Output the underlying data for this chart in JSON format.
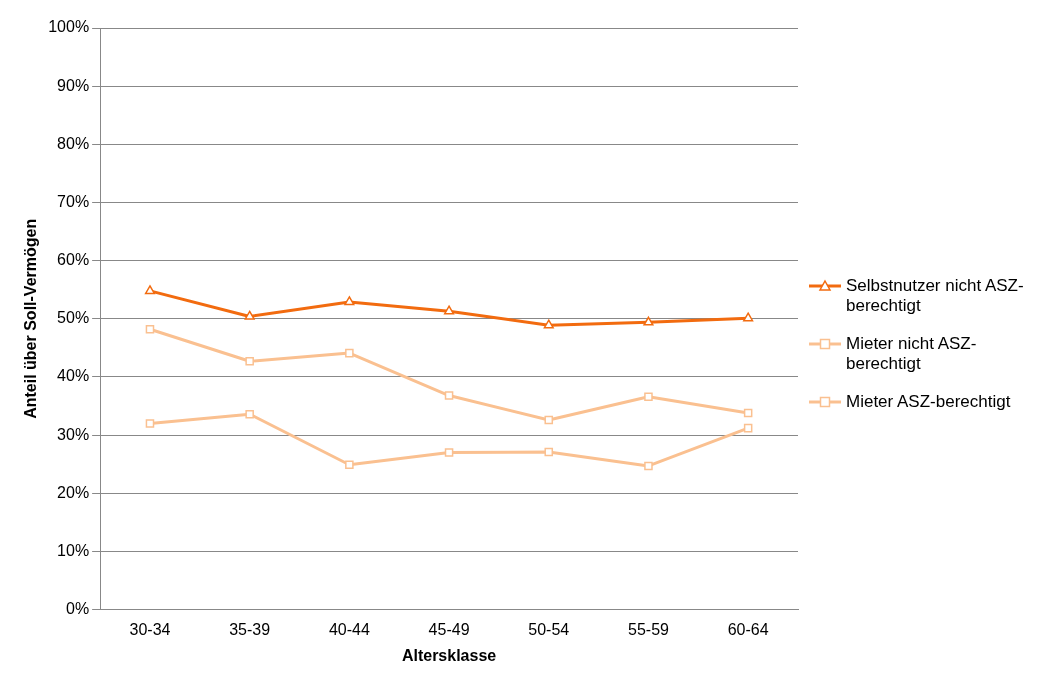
{
  "chart_data": {
    "type": "line",
    "xlabel": "Altersklasse",
    "ylabel": "Anteil über Soll-Vermögen",
    "categories": [
      "30-34",
      "35-39",
      "40-44",
      "45-49",
      "50-54",
      "55-59",
      "60-64"
    ],
    "ylim": [
      0,
      100
    ],
    "yticks": [
      {
        "value": 0,
        "label": "0%"
      },
      {
        "value": 10,
        "label": "10%"
      },
      {
        "value": 20,
        "label": "20%"
      },
      {
        "value": 30,
        "label": "30%"
      },
      {
        "value": 40,
        "label": "40%"
      },
      {
        "value": 50,
        "label": "50%"
      },
      {
        "value": 60,
        "label": "60%"
      },
      {
        "value": 70,
        "label": "70%"
      },
      {
        "value": 80,
        "label": "80%"
      },
      {
        "value": 90,
        "label": "90%"
      },
      {
        "value": 100,
        "label": "100%"
      }
    ],
    "grid": "y",
    "legend": "right",
    "series": [
      {
        "name": "Selbstnutzer nicht ASZ-berechtigt",
        "color": "#f26b0f",
        "marker": "triangle",
        "values": [
          54.8,
          50.4,
          52.9,
          51.3,
          48.9,
          49.4,
          50.1
        ]
      },
      {
        "name": "Mieter nicht ASZ-berechtigt",
        "color": "#fac090",
        "marker": "square",
        "values": [
          48.2,
          42.7,
          44.1,
          36.8,
          32.6,
          36.6,
          33.8
        ]
      },
      {
        "name": "Mieter ASZ-berechtigt",
        "color": "#fac090",
        "marker": "square",
        "values": [
          32.0,
          33.6,
          24.9,
          27.0,
          27.1,
          24.7,
          31.2
        ]
      }
    ]
  }
}
